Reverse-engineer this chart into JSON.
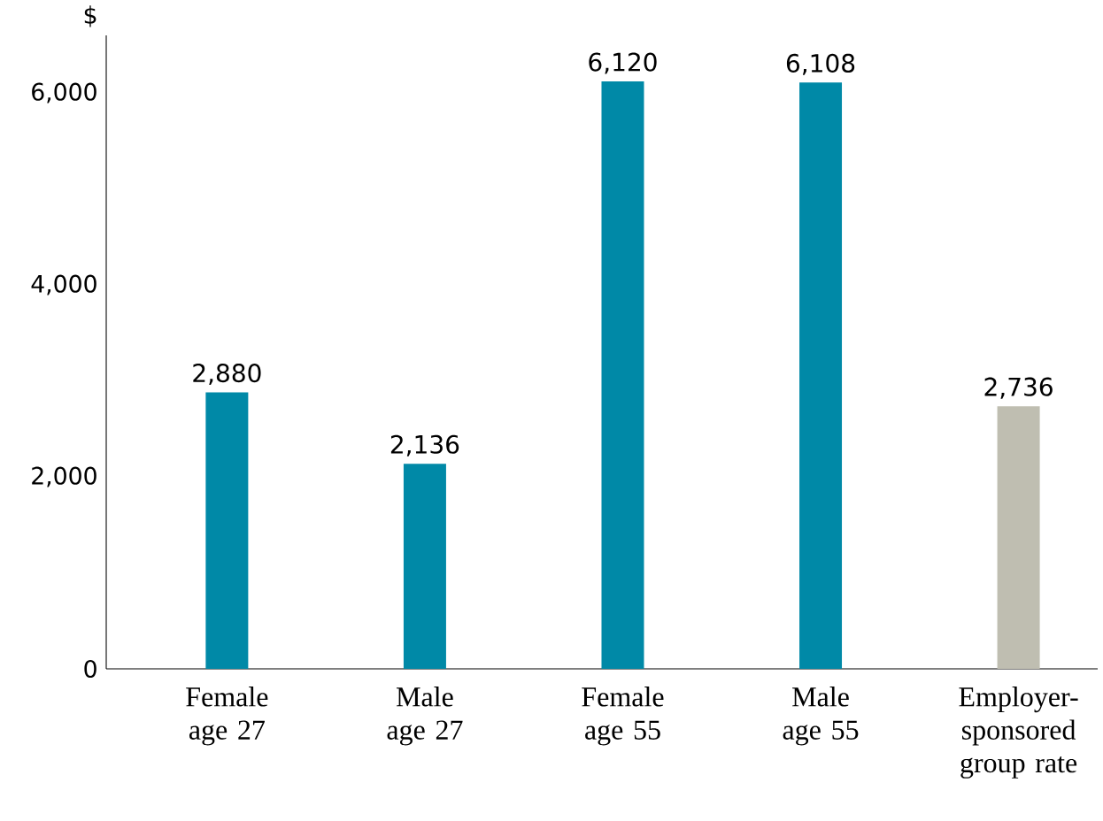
{
  "chart_data": {
    "type": "bar",
    "ylabel": "$",
    "categories": [
      "Female age 27",
      "Male age 27",
      "Female age 55",
      "Male age 55",
      "Employer-sponsored group rate"
    ],
    "values": [
      2880,
      2136,
      6120,
      6108,
      2736
    ],
    "value_labels": [
      "2,880",
      "2,136",
      "6,120",
      "6,108",
      "2,736"
    ],
    "colors": [
      "#0089a7",
      "#0089a7",
      "#0089a7",
      "#0089a7",
      "#bfbeb1"
    ],
    "ylim": [
      0,
      6600
    ],
    "yticks": [
      {
        "value": 0,
        "label": "0"
      },
      {
        "value": 2000,
        "label": "2,000"
      },
      {
        "value": 4000,
        "label": "4,000"
      },
      {
        "value": 6000,
        "label": "6,000"
      }
    ],
    "grid": false
  }
}
